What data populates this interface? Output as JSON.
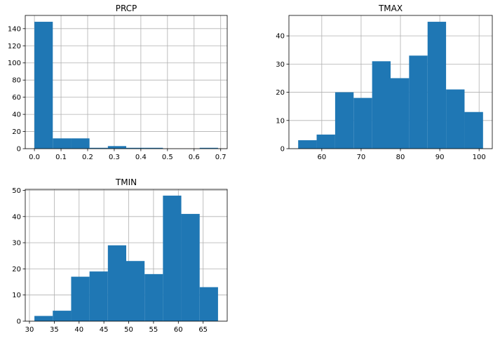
{
  "chart_data": [
    {
      "type": "bar",
      "title": "PRCP",
      "xlabel": "",
      "ylabel": "",
      "bin_edges": [
        0.0,
        0.069,
        0.138,
        0.207,
        0.276,
        0.345,
        0.414,
        0.483,
        0.552,
        0.621,
        0.69
      ],
      "values": [
        148,
        12,
        12,
        1,
        3,
        1,
        1,
        0,
        0,
        1
      ],
      "xlim": [
        -0.0345,
        0.7245
      ],
      "ylim": [
        0,
        155.4
      ],
      "xticks": [
        0.0,
        0.1,
        0.2,
        0.3,
        0.4,
        0.5,
        0.6,
        0.7
      ],
      "xtick_labels": [
        "0.0",
        "0.1",
        "0.2",
        "0.3",
        "0.4",
        "0.5",
        "0.6",
        "0.7"
      ],
      "yticks": [
        0,
        20,
        40,
        60,
        80,
        100,
        120,
        140
      ],
      "ytick_labels": [
        "0",
        "20",
        "40",
        "60",
        "80",
        "100",
        "120",
        "140"
      ],
      "grid": true,
      "color": "#1f77b4"
    },
    {
      "type": "bar",
      "title": "TMAX",
      "xlabel": "",
      "ylabel": "",
      "bin_edges": [
        54,
        58.7,
        63.4,
        68.1,
        72.8,
        77.5,
        82.2,
        86.9,
        91.6,
        96.3,
        101
      ],
      "values": [
        3,
        5,
        20,
        18,
        31,
        25,
        33,
        45,
        21,
        13
      ],
      "xlim": [
        51.65,
        103.35
      ],
      "ylim": [
        0,
        47.25
      ],
      "xticks": [
        60,
        70,
        80,
        90,
        100
      ],
      "xtick_labels": [
        "60",
        "70",
        "80",
        "90",
        "100"
      ],
      "yticks": [
        0,
        10,
        20,
        30,
        40
      ],
      "ytick_labels": [
        "0",
        "10",
        "20",
        "30",
        "40"
      ],
      "grid": true,
      "color": "#1f77b4"
    },
    {
      "type": "bar",
      "title": "TMIN",
      "xlabel": "",
      "ylabel": "",
      "bin_edges": [
        31,
        34.7,
        38.4,
        42.1,
        45.8,
        49.5,
        53.2,
        56.9,
        60.6,
        64.3,
        68
      ],
      "values": [
        2,
        4,
        17,
        19,
        29,
        23,
        18,
        48,
        41,
        13
      ],
      "xlim": [
        29.15,
        69.85
      ],
      "ylim": [
        0,
        50.4
      ],
      "xticks": [
        30,
        35,
        40,
        45,
        50,
        55,
        60,
        65
      ],
      "xtick_labels": [
        "30",
        "35",
        "40",
        "45",
        "50",
        "55",
        "60",
        "65"
      ],
      "yticks": [
        0,
        10,
        20,
        30,
        40,
        50
      ],
      "ytick_labels": [
        "0",
        "10",
        "20",
        "30",
        "40",
        "50"
      ],
      "grid": true,
      "color": "#1f77b4"
    }
  ]
}
